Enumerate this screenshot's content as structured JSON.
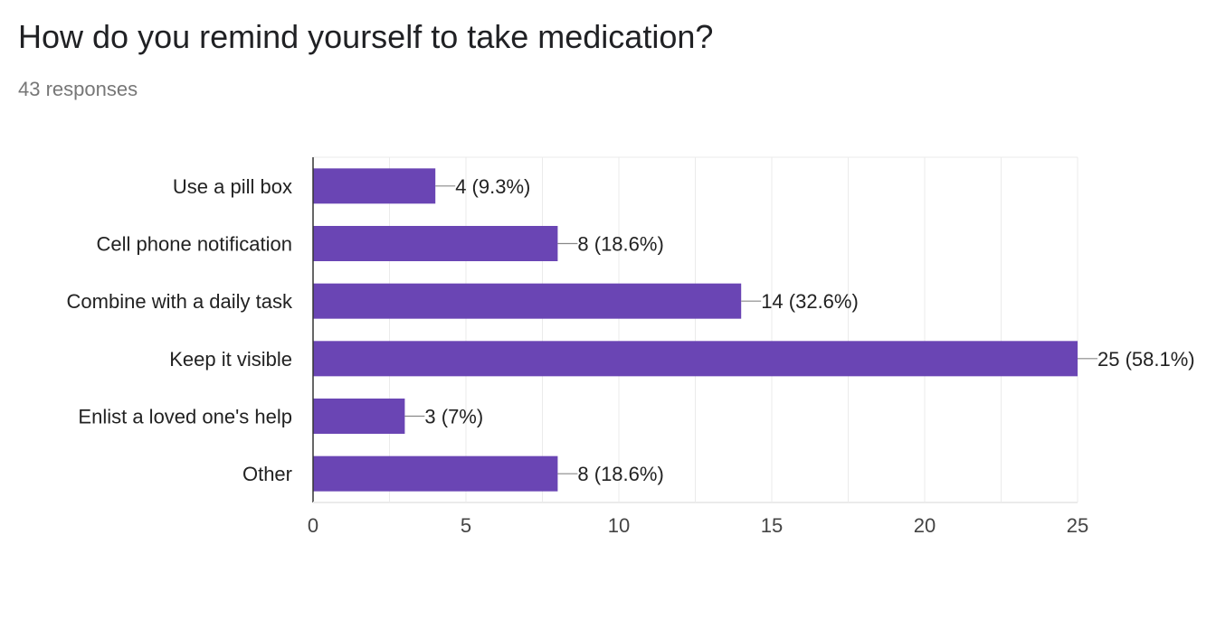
{
  "header": {
    "title": "How do you remind yourself to take medication?",
    "subtitle": "43 responses"
  },
  "colors": {
    "bar": "#6a45b4",
    "axis": "#333333",
    "grid": "#ebebeb",
    "leader": "#888888"
  },
  "chart_data": {
    "type": "bar",
    "orientation": "horizontal",
    "title": "How do you remind yourself to take medication?",
    "subtitle": "43 responses",
    "categories": [
      "Use a pill box",
      "Cell phone notification",
      "Combine with a daily task",
      "Keep it visible",
      "Enlist a loved one's help",
      "Other"
    ],
    "values": [
      4,
      8,
      14,
      25,
      3,
      8
    ],
    "data_labels": [
      "4 (9.3%)",
      "8 (18.6%)",
      "14 (32.6%)",
      "25 (58.1%)",
      "3 (7%)",
      "8 (18.6%)"
    ],
    "xlim": [
      0,
      25
    ],
    "xticks": [
      0,
      5,
      10,
      15,
      20,
      25
    ],
    "xlabel": "",
    "ylabel": "",
    "grid": true,
    "legend": "none"
  }
}
